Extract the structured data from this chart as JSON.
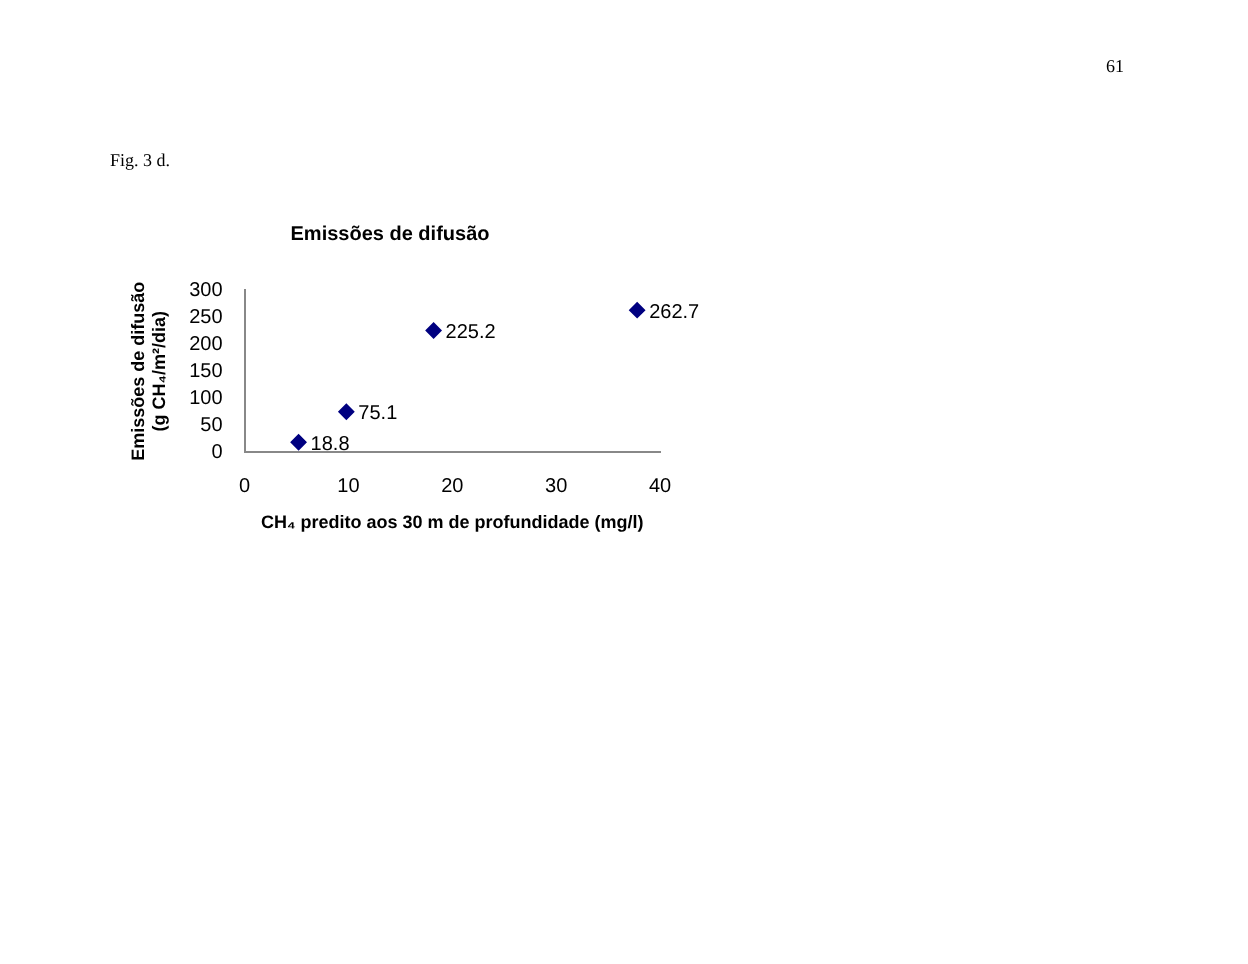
{
  "chart_data": {
    "type": "scatter",
    "title": "Emissões de difusão",
    "xlabel": "CH₄ predito aos 30 m de profundidade (mg/l)",
    "ylabel": "Emissões de difusão\n(g CH₄/m²/dia)",
    "x": [
      5.2,
      9.8,
      18.2,
      37.8
    ],
    "series": [
      {
        "color": "#000080",
        "values": [
          18.8,
          75.1,
          225.2,
          262.7
        ]
      }
    ],
    "data_labels": true,
    "marker": "diamond",
    "grid": false,
    "legend": false,
    "xlim": [
      0,
      40
    ],
    "xticks": [
      0,
      10,
      20,
      30,
      40
    ],
    "ylim": [
      0,
      300
    ],
    "yticks": [
      0,
      50,
      100,
      150,
      200,
      250,
      300
    ],
    "annotations": [
      "61",
      "Fig. 3 d."
    ]
  }
}
